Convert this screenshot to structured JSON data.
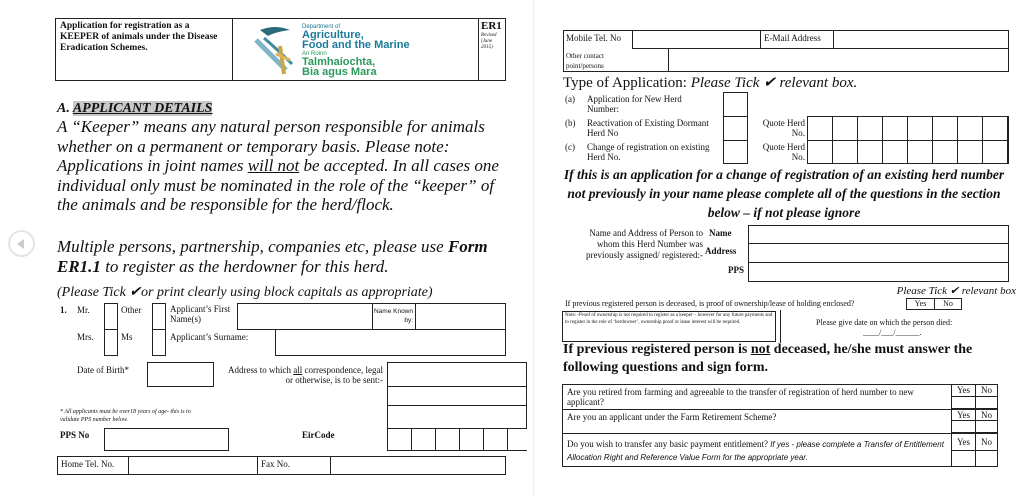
{
  "header": {
    "title": "Application for registration as a KEEPER of animals under the Disease Eradication Schemes.",
    "logo": {
      "line1": "Department of",
      "line2": "Agriculture,",
      "line3": "Food and the Marine",
      "line4": "An Roinn",
      "line5": "Talmhaíochta,",
      "line6": "Bia agus Mara"
    },
    "form_code": "ER1",
    "revised": "Revised (June 2015)"
  },
  "section_a": {
    "prefix": "A.",
    "title": "APPLICANT DETAILS",
    "para1_pre": "A “Keeper” means any natural person responsible for animals whether on a permanent or temporary basis. Please note: Applications in joint names ",
    "para1_underline": "will not",
    "para1_post": " be accepted. In all cases one individual only must be nominated in the role of the “keeper” of the animals and be responsible for the herd/flock.",
    "para2_pre": "Multiple persons, partnership, companies etc, please use ",
    "para2_bold": "Form ER1.1",
    "para2_post": " to register as the herdowner for this herd.",
    "tick_note": "(Please Tick ✔or print clearly using block capitals as appropriate)"
  },
  "applicant": {
    "number": "1.",
    "mr": "Mr.",
    "other": "Other",
    "mrs": "Mrs.",
    "ms": "Ms",
    "first_name": "Applicant’s First Name(s)",
    "known_by": "Name Known by:",
    "surname": "Applicant’s Surname:",
    "dob": "Date of Birth*",
    "address_pre": "Address to which ",
    "address_u": "all",
    "address_post": " correspondence, legal or otherwise, is to be sent:-",
    "age_note": "* All applicants must be over18 years of age- this is to validate PPS number below.",
    "pps": "PPS No",
    "eircode": "EirCode",
    "home_tel": "Home Tel. No.",
    "fax": "Fax No."
  },
  "contact": {
    "mobile": "Mobile Tel. No",
    "email": "E-Mail  Address",
    "other": "Other contact point/persons"
  },
  "type": {
    "heading": "Type of Application: ",
    "heading_it": "Please Tick ✔  relevant box.",
    "options": [
      {
        "letter": "(a)",
        "label": "Application for New Herd Number:"
      },
      {
        "letter": "(b)",
        "label": "Reactivation of Existing Dormant Herd No"
      },
      {
        "letter": "(c)",
        "label": "Change of registration on existing Herd No."
      }
    ],
    "quote": "Quote Herd No."
  },
  "change": {
    "notice": "If this is an application for a change of registration of an existing herd number not previously in your name please complete all of the questions in the section below – if not please ignore",
    "prev_label": "Name and Address of Person to whom this Herd Number was previously assigned/ registered:-",
    "name": "Name",
    "address": "Address",
    "pps": "PPS",
    "tick": "Please Tick ✔ relevant box",
    "deceased_q": "If previous registered person is deceased, is proof of ownership/lease of holding enclosed?",
    "yes": "Yes",
    "no": "No",
    "note": "Note: -Proof of ownership is not required to register as a keeper – however for any future payments and to register in the role of ‘herdowner’, ownership proof or lease interest will be required.",
    "date_died": "Please give date on which the person died:",
    "date_blank": "____/___/______."
  },
  "not_deceased": {
    "pre": "If previous registered person is ",
    "u": "not",
    "post": " deceased, he/she must answer the following questions and sign form.",
    "questions": [
      {
        "text": "Are you retired from farming and agreeable to the transfer of registration of herd number to new applicant?",
        "it": ""
      },
      {
        "text": "Are you an applicant under the Farm Retirement Scheme?",
        "it": ""
      },
      {
        "text": "Do you wish to transfer any basic payment entitlement? ",
        "it": "If yes - please complete a Transfer of Entitlement Allocation Right and Reference Value Form for the appropriate year."
      }
    ]
  }
}
